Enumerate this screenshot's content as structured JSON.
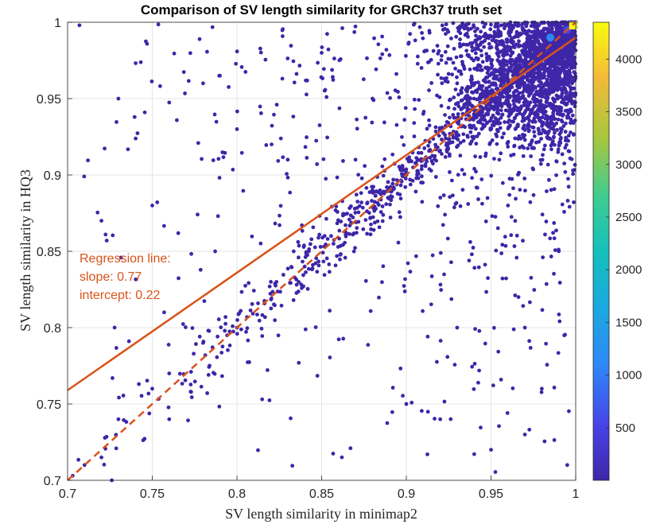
{
  "chart_data": {
    "type": "scatter",
    "title": "Comparison of SV length similarity for GRCh37 truth set",
    "xlabel": "SV length similarity in minimap2",
    "ylabel": "SV length similarity in HQ3",
    "xlim": [
      0.7,
      1.0
    ],
    "ylim": [
      0.7,
      1.0
    ],
    "x_ticks": [
      "0.7",
      "0.75",
      "0.8",
      "0.85",
      "0.9",
      "0.95",
      "1"
    ],
    "y_ticks": [
      "0.7",
      "0.75",
      "0.8",
      "0.85",
      "0.9",
      "0.95",
      "1"
    ],
    "grid": true,
    "colorbar": {
      "range": [
        0,
        4350
      ],
      "ticks": [
        "500",
        "1000",
        "1500",
        "2000",
        "2500",
        "3000",
        "3500",
        "4000"
      ],
      "colormap": "parula"
    },
    "regression": {
      "slope": 0.77,
      "intercept": 0.22,
      "color": "#d95319"
    },
    "identity_line": {
      "slope": 1,
      "intercept": 0,
      "style": "dashed",
      "color": "#d95319"
    },
    "annotation": [
      "Regression line:",
      "slope: 0.77",
      "intercept: 0.22"
    ],
    "point_color": "#3e26a8",
    "points_sample": [
      [
        0.703,
        0.703
      ],
      [
        0.71,
        0.71
      ],
      [
        0.72,
        0.715
      ],
      [
        0.73,
        0.74
      ],
      [
        0.75,
        0.76
      ],
      [
        0.76,
        0.77
      ],
      [
        0.78,
        0.79
      ],
      [
        0.8,
        0.8
      ],
      [
        0.82,
        0.83
      ],
      [
        0.84,
        0.84
      ],
      [
        0.86,
        0.87
      ],
      [
        0.87,
        0.91
      ],
      [
        0.88,
        0.89
      ],
      [
        0.9,
        0.9
      ],
      [
        0.91,
        0.94
      ],
      [
        0.92,
        0.93
      ],
      [
        0.93,
        0.96
      ],
      [
        0.94,
        0.95
      ],
      [
        0.95,
        0.97
      ],
      [
        0.96,
        0.96
      ],
      [
        0.97,
        0.98
      ],
      [
        0.98,
        0.99
      ],
      [
        0.99,
        0.995
      ],
      [
        1.0,
        1.0
      ],
      [
        0.707,
        0.998
      ],
      [
        0.73,
        0.95
      ],
      [
        0.72,
        0.87
      ],
      [
        0.76,
        0.74
      ],
      [
        0.8,
        0.93
      ],
      [
        0.85,
        0.98
      ],
      [
        0.9,
        0.75
      ],
      [
        0.95,
        0.72
      ],
      [
        0.97,
        0.8
      ],
      [
        0.98,
        0.76
      ],
      [
        0.93,
        0.8
      ],
      [
        0.88,
        0.95
      ],
      [
        0.83,
        0.91
      ],
      [
        0.78,
        0.96
      ],
      [
        0.75,
        0.88
      ],
      [
        0.96,
        0.88
      ],
      [
        0.99,
        0.85
      ],
      [
        0.995,
        0.71
      ],
      [
        0.97,
        0.73
      ],
      [
        0.92,
        0.74
      ]
    ],
    "density_peak": [
      1.0,
      1.0
    ]
  }
}
